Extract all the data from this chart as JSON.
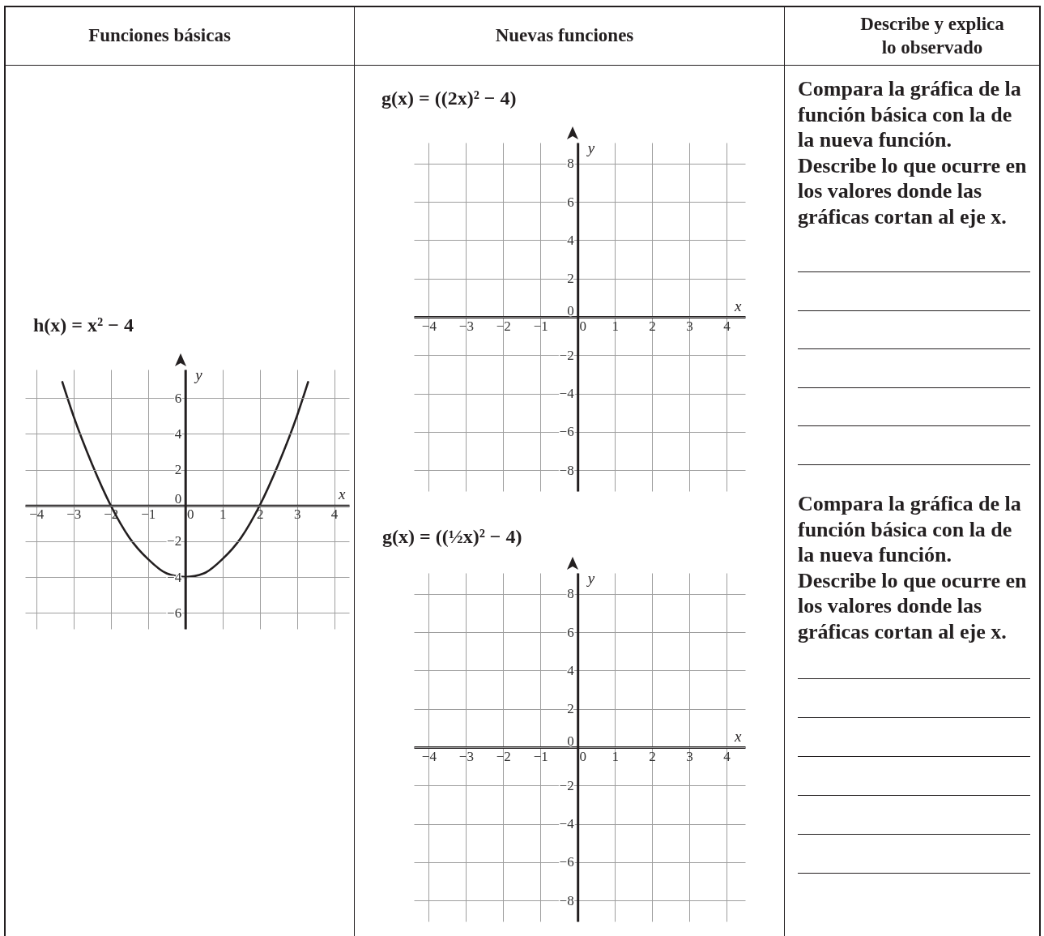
{
  "chart_data": [
    {
      "type": "other",
      "annotations": [
        "Funciones básicas",
        "Nuevas funciones",
        "Describe y explica lo observado"
      ]
    },
    {
      "type": "line",
      "title": "h(x) = x² − 4",
      "xlabel": "x",
      "ylabel": "y",
      "xlim": [
        -4.3,
        4.4
      ],
      "ylim": [
        -6.9,
        7.6
      ],
      "xticks": [
        -4,
        -3,
        -2,
        -1,
        0,
        1,
        2,
        3,
        4
      ],
      "yticks": [
        -6,
        -4,
        -2,
        0,
        2,
        4,
        6
      ],
      "grid": true,
      "series": [
        {
          "color": "#231f20",
          "x": [
            -3.3,
            -3,
            -2.5,
            -2,
            -1.5,
            -1,
            -0.5,
            0,
            0.5,
            1,
            1.5,
            2,
            2.5,
            3,
            3.3
          ],
          "values": [
            6.9,
            5,
            2.3,
            0,
            -1.8,
            -3,
            -3.8,
            -4,
            -3.8,
            -3,
            -1.8,
            0,
            2.3,
            5,
            6.9
          ]
        }
      ]
    },
    {
      "type": "line",
      "title": "g(x) = ((2x)² − 4)",
      "xlabel": "x",
      "ylabel": "y",
      "xlim": [
        -4.4,
        4.5
      ],
      "ylim": [
        -9.1,
        9.1
      ],
      "xticks": [
        -4,
        -3,
        -2,
        -1,
        0,
        1,
        2,
        3,
        4
      ],
      "yticks": [
        -8,
        -6,
        -4,
        -2,
        0,
        2,
        4,
        6,
        8
      ],
      "grid": true
    },
    {
      "type": "other",
      "annotations": [
        "Compara la gráfica de la función básica con la de la nueva función.",
        "Describe lo que ocurre en los valores donde las gráficas cortan al eje x."
      ]
    },
    {
      "type": "line",
      "title": "g(x) = ((½x)² − 4)",
      "xlabel": "x",
      "ylabel": "y",
      "xlim": [
        -4.4,
        4.5
      ],
      "ylim": [
        -9.1,
        9.1
      ],
      "xticks": [
        -4,
        -3,
        -2,
        -1,
        0,
        1,
        2,
        3,
        4
      ],
      "yticks": [
        -8,
        -6,
        -4,
        -2,
        0,
        2,
        4,
        6,
        8
      ],
      "grid": true
    },
    {
      "type": "other",
      "annotations": [
        "Compara la gráfica de la función básica con la de la nueva función.",
        "Describe lo que ocurre en los valores donde las gráficas cortan al eje x."
      ]
    }
  ]
}
